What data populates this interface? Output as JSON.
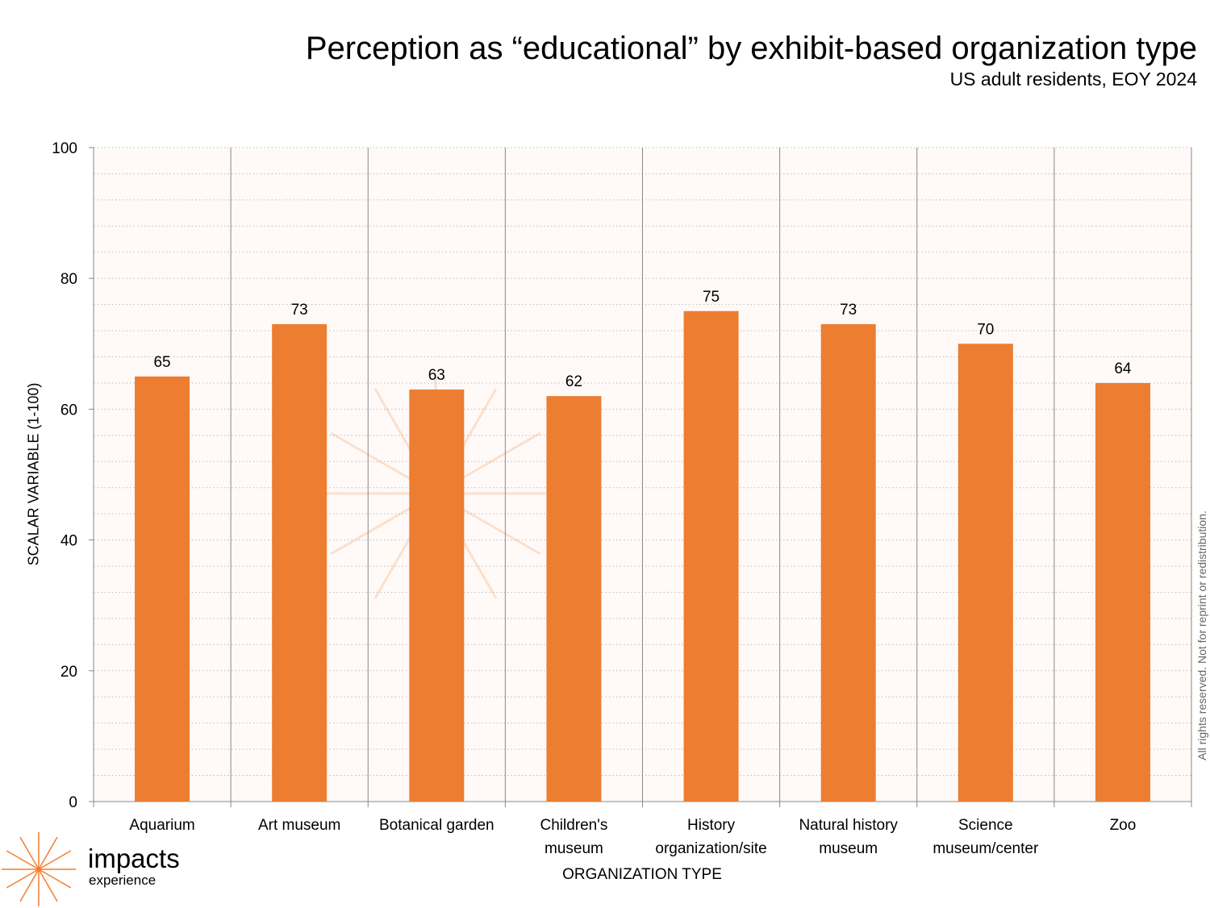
{
  "chart_data": {
    "type": "bar",
    "title": "Perception as “educational” by exhibit-based organization type",
    "subtitle": "US adult residents, EOY 2024",
    "xlabel": "ORGANIZATION TYPE",
    "ylabel": "SCALAR VARIABLE (1-100)",
    "categories": [
      [
        "Aquarium"
      ],
      [
        "Art museum"
      ],
      [
        "Botanical garden"
      ],
      [
        "Children's",
        "museum"
      ],
      [
        "History",
        "organization/site"
      ],
      [
        "Natural history",
        "museum"
      ],
      [
        "Science",
        "museum/center"
      ],
      [
        "Zoo"
      ]
    ],
    "values": [
      65,
      73,
      63,
      62,
      75,
      73,
      70,
      64
    ],
    "ylim": [
      0,
      100
    ],
    "yticks": [
      0,
      20,
      40,
      60,
      80,
      100
    ],
    "minor_grid_step": 4,
    "grid": true,
    "bar_color": "#ED7D31"
  },
  "footer": {
    "rights": "All rights reserved. Not for reprint or redistribution.",
    "logo_word": "impacts",
    "logo_sub": "experience"
  }
}
